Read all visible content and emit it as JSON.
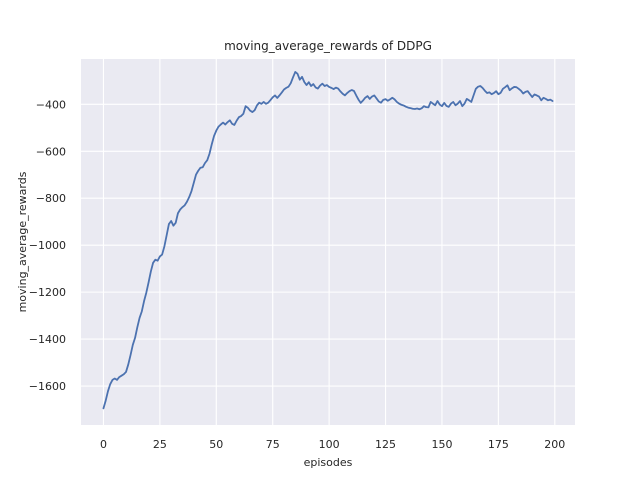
{
  "figure": {
    "background_color": "#ffffff"
  },
  "chart_data": {
    "type": "line",
    "title": "moving_average_rewards of DDPG",
    "xlabel": "episodes",
    "ylabel": "moving_average_rewards",
    "legend": "none",
    "grid": true,
    "style": "seaborn-darkgrid",
    "axes_background": "#eaeaf2",
    "grid_color": "#ffffff",
    "line_color": "#4c72b0",
    "text_color": "#262626",
    "xlim": [
      -9.95,
      208.95
    ],
    "ylim": [
      -1766,
      -207
    ],
    "x_tick_values": [
      0,
      25,
      50,
      75,
      100,
      125,
      150,
      175,
      200
    ],
    "x_tick_labels": [
      "0",
      "25",
      "50",
      "75",
      "100",
      "125",
      "150",
      "175",
      "200"
    ],
    "y_tick_values": [
      -400,
      -600,
      -800,
      -1000,
      -1200,
      -1400,
      -1600
    ],
    "y_tick_labels": [
      "−400",
      "−600",
      "−800",
      "−1000",
      "−1200",
      "−1400",
      "−1600"
    ],
    "x_start": 0,
    "x_step": 1,
    "values": [
      -1695,
      -1662,
      -1622,
      -1592,
      -1574,
      -1568,
      -1574,
      -1562,
      -1556,
      -1550,
      -1540,
      -1508,
      -1468,
      -1425,
      -1395,
      -1350,
      -1310,
      -1282,
      -1238,
      -1202,
      -1158,
      -1112,
      -1075,
      -1062,
      -1066,
      -1048,
      -1040,
      -1005,
      -958,
      -910,
      -897,
      -917,
      -905,
      -864,
      -848,
      -838,
      -830,
      -815,
      -795,
      -770,
      -735,
      -700,
      -683,
      -670,
      -668,
      -650,
      -638,
      -610,
      -570,
      -535,
      -512,
      -495,
      -486,
      -478,
      -486,
      -476,
      -468,
      -483,
      -488,
      -470,
      -455,
      -450,
      -440,
      -408,
      -415,
      -427,
      -433,
      -425,
      -405,
      -393,
      -398,
      -390,
      -398,
      -393,
      -382,
      -370,
      -362,
      -373,
      -362,
      -350,
      -337,
      -330,
      -325,
      -310,
      -285,
      -262,
      -270,
      -295,
      -283,
      -305,
      -318,
      -306,
      -322,
      -314,
      -328,
      -333,
      -320,
      -312,
      -322,
      -318,
      -326,
      -330,
      -335,
      -329,
      -333,
      -345,
      -355,
      -362,
      -352,
      -344,
      -339,
      -343,
      -362,
      -380,
      -394,
      -384,
      -372,
      -365,
      -377,
      -367,
      -362,
      -375,
      -388,
      -393,
      -381,
      -378,
      -385,
      -379,
      -372,
      -379,
      -390,
      -397,
      -402,
      -405,
      -410,
      -414,
      -416,
      -419,
      -420,
      -418,
      -421,
      -417,
      -408,
      -412,
      -413,
      -390,
      -397,
      -404,
      -386,
      -401,
      -408,
      -394,
      -407,
      -411,
      -397,
      -390,
      -404,
      -397,
      -386,
      -408,
      -397,
      -377,
      -383,
      -390,
      -362,
      -334,
      -325,
      -322,
      -330,
      -342,
      -352,
      -349,
      -357,
      -352,
      -344,
      -357,
      -351,
      -334,
      -327,
      -319,
      -340,
      -332,
      -326,
      -327,
      -334,
      -342,
      -354,
      -347,
      -344,
      -357,
      -369,
      -358,
      -362,
      -367,
      -383,
      -372,
      -377,
      -383,
      -380,
      -386
    ]
  }
}
